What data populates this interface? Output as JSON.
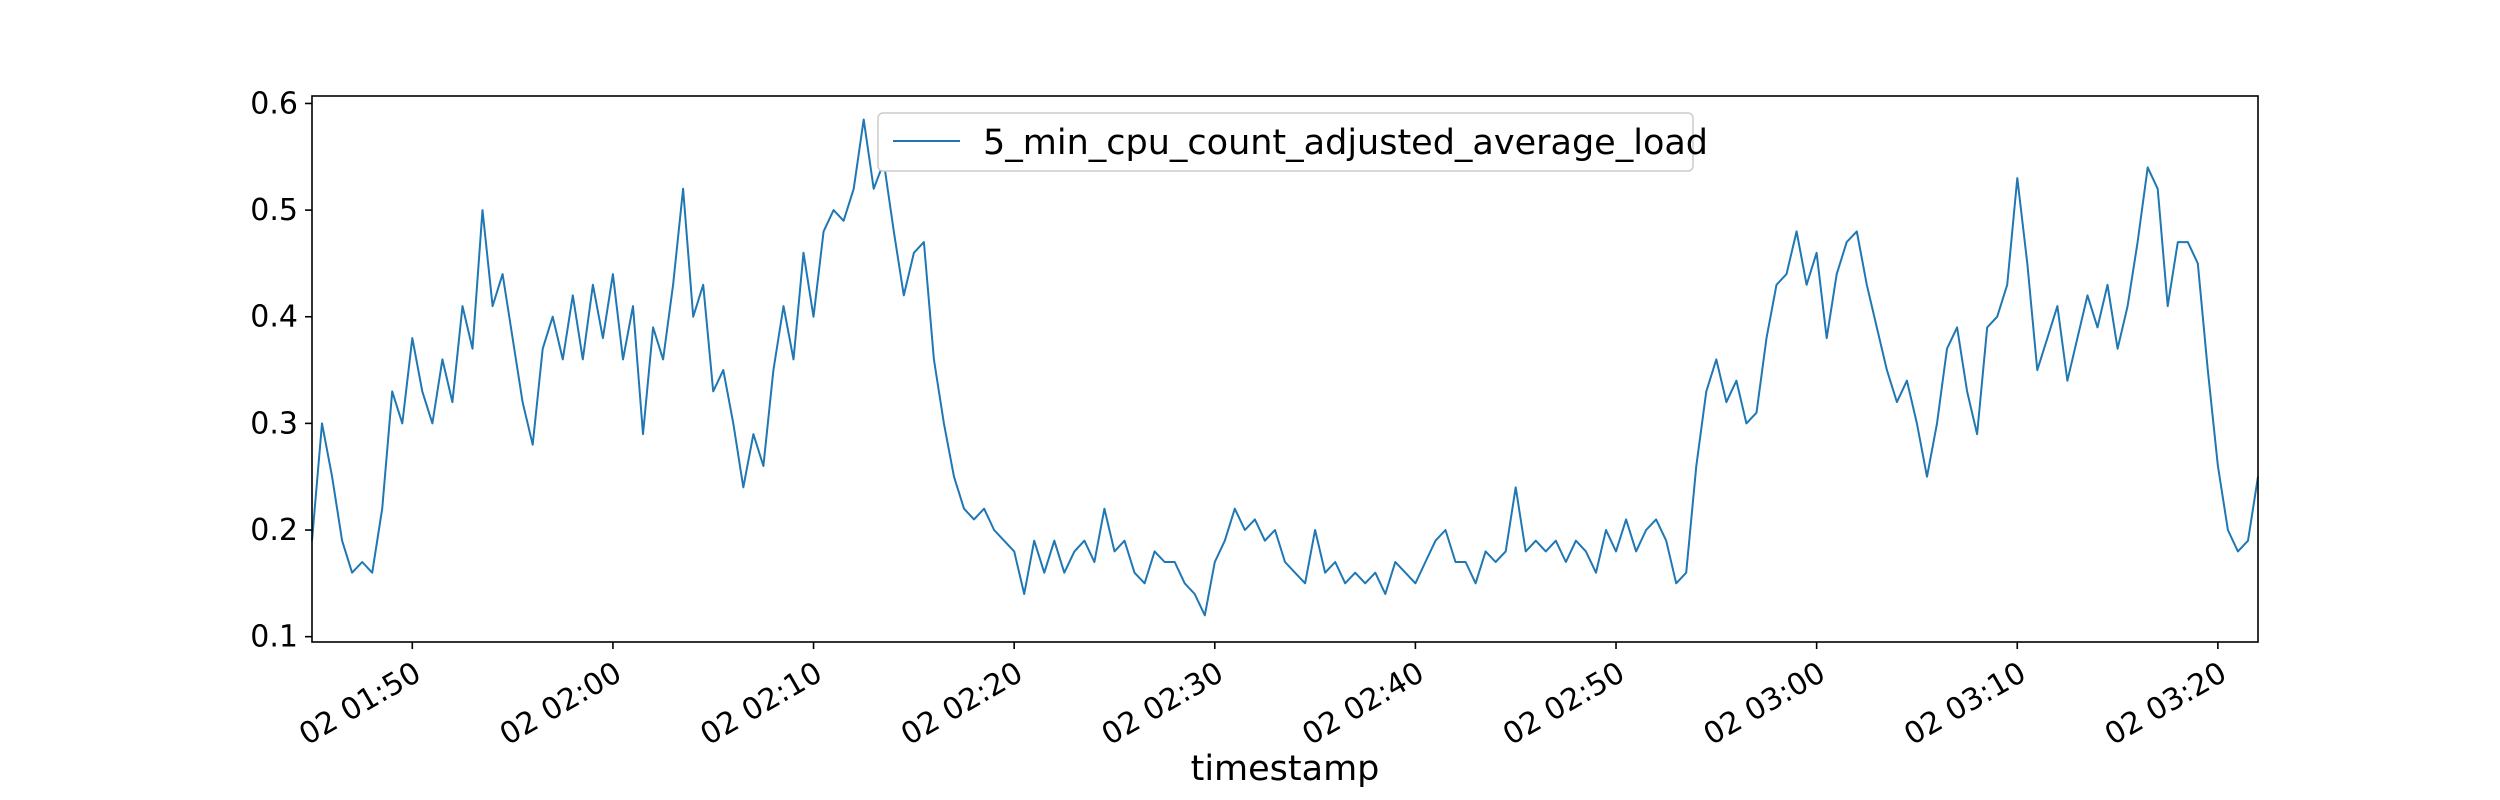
{
  "chart_data": {
    "type": "line",
    "title": "",
    "xlabel": "timestamp",
    "ylabel": "",
    "grid": false,
    "legend_position": "top-center",
    "x_range": [
      "02 01:45",
      "02 03:22"
    ],
    "ylim": [
      0.095,
      0.607
    ],
    "y_ticks": [
      0.1,
      0.2,
      0.3,
      0.4,
      0.5,
      0.6
    ],
    "y_tick_labels": [
      "0.1",
      "0.2",
      "0.3",
      "0.4",
      "0.5",
      "0.6"
    ],
    "x_ticks": [
      "02 01:50",
      "02 02:00",
      "02 02:10",
      "02 02:20",
      "02 02:30",
      "02 02:40",
      "02 02:50",
      "02 03:00",
      "02 03:10",
      "02 03:20"
    ],
    "series": [
      {
        "name": "5_min_cpu_count_adjusted_average_load",
        "color": "#1f77b4",
        "points": [
          [
            "02 01:45",
            0.19
          ],
          [
            "02 01:45:30",
            0.3
          ],
          [
            "02 01:46",
            0.25
          ],
          [
            "02 01:46:30",
            0.19
          ],
          [
            "02 01:47",
            0.16
          ],
          [
            "02 01:47:30",
            0.17
          ],
          [
            "02 01:48",
            0.16
          ],
          [
            "02 01:48:30",
            0.22
          ],
          [
            "02 01:49",
            0.33
          ],
          [
            "02 01:49:30",
            0.3
          ],
          [
            "02 01:50",
            0.38
          ],
          [
            "02 01:50:30",
            0.33
          ],
          [
            "02 01:51",
            0.3
          ],
          [
            "02 01:51:30",
            0.36
          ],
          [
            "02 01:52",
            0.32
          ],
          [
            "02 01:52:30",
            0.41
          ],
          [
            "02 01:53",
            0.37
          ],
          [
            "02 01:53:30",
            0.5
          ],
          [
            "02 01:54",
            0.41
          ],
          [
            "02 01:54:30",
            0.44
          ],
          [
            "02 01:55",
            0.38
          ],
          [
            "02 01:55:30",
            0.32
          ],
          [
            "02 01:56",
            0.28
          ],
          [
            "02 01:56:30",
            0.37
          ],
          [
            "02 01:57",
            0.4
          ],
          [
            "02 01:57:30",
            0.36
          ],
          [
            "02 01:58",
            0.42
          ],
          [
            "02 01:58:30",
            0.36
          ],
          [
            "02 01:59",
            0.43
          ],
          [
            "02 01:59:30",
            0.38
          ],
          [
            "02 02:00",
            0.44
          ],
          [
            "02 02:00:30",
            0.36
          ],
          [
            "02 02:01",
            0.41
          ],
          [
            "02 02:01:30",
            0.29
          ],
          [
            "02 02:02",
            0.39
          ],
          [
            "02 02:02:30",
            0.36
          ],
          [
            "02 02:03",
            0.43
          ],
          [
            "02 02:03:30",
            0.52
          ],
          [
            "02 02:04",
            0.4
          ],
          [
            "02 02:04:30",
            0.43
          ],
          [
            "02 02:05",
            0.33
          ],
          [
            "02 02:05:30",
            0.35
          ],
          [
            "02 02:06",
            0.3
          ],
          [
            "02 02:06:30",
            0.24
          ],
          [
            "02 02:07",
            0.29
          ],
          [
            "02 02:07:30",
            0.26
          ],
          [
            "02 02:08",
            0.35
          ],
          [
            "02 02:08:30",
            0.41
          ],
          [
            "02 02:09",
            0.36
          ],
          [
            "02 02:09:30",
            0.46
          ],
          [
            "02 02:10",
            0.4
          ],
          [
            "02 02:10:30",
            0.48
          ],
          [
            "02 02:11",
            0.5
          ],
          [
            "02 02:11:30",
            0.49
          ],
          [
            "02 02:12",
            0.52
          ],
          [
            "02 02:12:30",
            0.585
          ],
          [
            "02 02:13",
            0.52
          ],
          [
            "02 02:13:30",
            0.545
          ],
          [
            "02 02:14",
            0.48
          ],
          [
            "02 02:14:30",
            0.42
          ],
          [
            "02 02:15",
            0.46
          ],
          [
            "02 02:15:30",
            0.47
          ],
          [
            "02 02:16",
            0.36
          ],
          [
            "02 02:16:30",
            0.3
          ],
          [
            "02 02:17",
            0.25
          ],
          [
            "02 02:17:30",
            0.22
          ],
          [
            "02 02:18",
            0.21
          ],
          [
            "02 02:18:30",
            0.22
          ],
          [
            "02 02:19",
            0.2
          ],
          [
            "02 02:19:30",
            0.19
          ],
          [
            "02 02:20",
            0.18
          ],
          [
            "02 02:20:30",
            0.14
          ],
          [
            "02 02:21",
            0.19
          ],
          [
            "02 02:21:30",
            0.16
          ],
          [
            "02 02:22",
            0.19
          ],
          [
            "02 02:22:30",
            0.16
          ],
          [
            "02 02:23",
            0.18
          ],
          [
            "02 02:23:30",
            0.19
          ],
          [
            "02 02:24",
            0.17
          ],
          [
            "02 02:24:30",
            0.22
          ],
          [
            "02 02:25",
            0.18
          ],
          [
            "02 02:25:30",
            0.19
          ],
          [
            "02 02:26",
            0.16
          ],
          [
            "02 02:26:30",
            0.15
          ],
          [
            "02 02:27",
            0.18
          ],
          [
            "02 02:27:30",
            0.17
          ],
          [
            "02 02:28",
            0.17
          ],
          [
            "02 02:28:30",
            0.15
          ],
          [
            "02 02:29",
            0.14
          ],
          [
            "02 02:29:30",
            0.12
          ],
          [
            "02 02:30",
            0.17
          ],
          [
            "02 02:30:30",
            0.19
          ],
          [
            "02 02:31",
            0.22
          ],
          [
            "02 02:31:30",
            0.2
          ],
          [
            "02 02:32",
            0.21
          ],
          [
            "02 02:32:30",
            0.19
          ],
          [
            "02 02:33",
            0.2
          ],
          [
            "02 02:33:30",
            0.17
          ],
          [
            "02 02:34",
            0.16
          ],
          [
            "02 02:34:30",
            0.15
          ],
          [
            "02 02:35",
            0.2
          ],
          [
            "02 02:35:30",
            0.16
          ],
          [
            "02 02:36",
            0.17
          ],
          [
            "02 02:36:30",
            0.15
          ],
          [
            "02 02:37",
            0.16
          ],
          [
            "02 02:37:30",
            0.15
          ],
          [
            "02 02:38",
            0.16
          ],
          [
            "02 02:38:30",
            0.14
          ],
          [
            "02 02:39",
            0.17
          ],
          [
            "02 02:39:30",
            0.16
          ],
          [
            "02 02:40",
            0.15
          ],
          [
            "02 02:40:30",
            0.17
          ],
          [
            "02 02:41",
            0.19
          ],
          [
            "02 02:41:30",
            0.2
          ],
          [
            "02 02:42",
            0.17
          ],
          [
            "02 02:42:30",
            0.17
          ],
          [
            "02 02:43",
            0.15
          ],
          [
            "02 02:43:30",
            0.18
          ],
          [
            "02 02:44",
            0.17
          ],
          [
            "02 02:44:30",
            0.18
          ],
          [
            "02 02:45",
            0.24
          ],
          [
            "02 02:45:30",
            0.18
          ],
          [
            "02 02:46",
            0.19
          ],
          [
            "02 02:46:30",
            0.18
          ],
          [
            "02 02:47",
            0.19
          ],
          [
            "02 02:47:30",
            0.17
          ],
          [
            "02 02:48",
            0.19
          ],
          [
            "02 02:48:30",
            0.18
          ],
          [
            "02 02:49",
            0.16
          ],
          [
            "02 02:49:30",
            0.2
          ],
          [
            "02 02:50",
            0.18
          ],
          [
            "02 02:50:30",
            0.21
          ],
          [
            "02 02:51",
            0.18
          ],
          [
            "02 02:51:30",
            0.2
          ],
          [
            "02 02:52",
            0.21
          ],
          [
            "02 02:52:30",
            0.19
          ],
          [
            "02 02:53",
            0.15
          ],
          [
            "02 02:53:30",
            0.16
          ],
          [
            "02 02:54",
            0.26
          ],
          [
            "02 02:54:30",
            0.33
          ],
          [
            "02 02:55",
            0.36
          ],
          [
            "02 02:55:30",
            0.32
          ],
          [
            "02 02:56",
            0.34
          ],
          [
            "02 02:56:30",
            0.3
          ],
          [
            "02 02:57",
            0.31
          ],
          [
            "02 02:57:30",
            0.38
          ],
          [
            "02 02:58",
            0.43
          ],
          [
            "02 02:58:30",
            0.44
          ],
          [
            "02 02:59",
            0.48
          ],
          [
            "02 02:59:30",
            0.43
          ],
          [
            "02 03:00",
            0.46
          ],
          [
            "02 03:00:30",
            0.38
          ],
          [
            "02 03:01",
            0.44
          ],
          [
            "02 03:01:30",
            0.47
          ],
          [
            "02 03:02",
            0.48
          ],
          [
            "02 03:02:30",
            0.43
          ],
          [
            "02 03:03",
            0.39
          ],
          [
            "02 03:03:30",
            0.35
          ],
          [
            "02 03:04",
            0.32
          ],
          [
            "02 03:04:30",
            0.34
          ],
          [
            "02 03:05",
            0.3
          ],
          [
            "02 03:05:30",
            0.25
          ],
          [
            "02 03:06",
            0.3
          ],
          [
            "02 03:06:30",
            0.37
          ],
          [
            "02 03:07",
            0.39
          ],
          [
            "02 03:07:30",
            0.33
          ],
          [
            "02 03:08",
            0.29
          ],
          [
            "02 03:08:30",
            0.39
          ],
          [
            "02 03:09",
            0.4
          ],
          [
            "02 03:09:30",
            0.43
          ],
          [
            "02 03:10",
            0.53
          ],
          [
            "02 03:10:30",
            0.45
          ],
          [
            "02 03:11",
            0.35
          ],
          [
            "02 03:11:30",
            0.38
          ],
          [
            "02 03:12",
            0.41
          ],
          [
            "02 03:12:30",
            0.34
          ],
          [
            "02 03:13",
            0.38
          ],
          [
            "02 03:13:30",
            0.42
          ],
          [
            "02 03:14",
            0.39
          ],
          [
            "02 03:14:30",
            0.43
          ],
          [
            "02 03:15",
            0.37
          ],
          [
            "02 03:15:30",
            0.41
          ],
          [
            "02 03:16",
            0.47
          ],
          [
            "02 03:16:30",
            0.54
          ],
          [
            "02 03:17",
            0.52
          ],
          [
            "02 03:17:30",
            0.41
          ],
          [
            "02 03:18",
            0.47
          ],
          [
            "02 03:18:30",
            0.47
          ],
          [
            "02 03:19",
            0.45
          ],
          [
            "02 03:19:30",
            0.35
          ],
          [
            "02 03:20",
            0.26
          ],
          [
            "02 03:20:30",
            0.2
          ],
          [
            "02 03:21",
            0.18
          ],
          [
            "02 03:21:30",
            0.19
          ],
          [
            "02 03:22",
            0.25
          ]
        ]
      }
    ]
  }
}
